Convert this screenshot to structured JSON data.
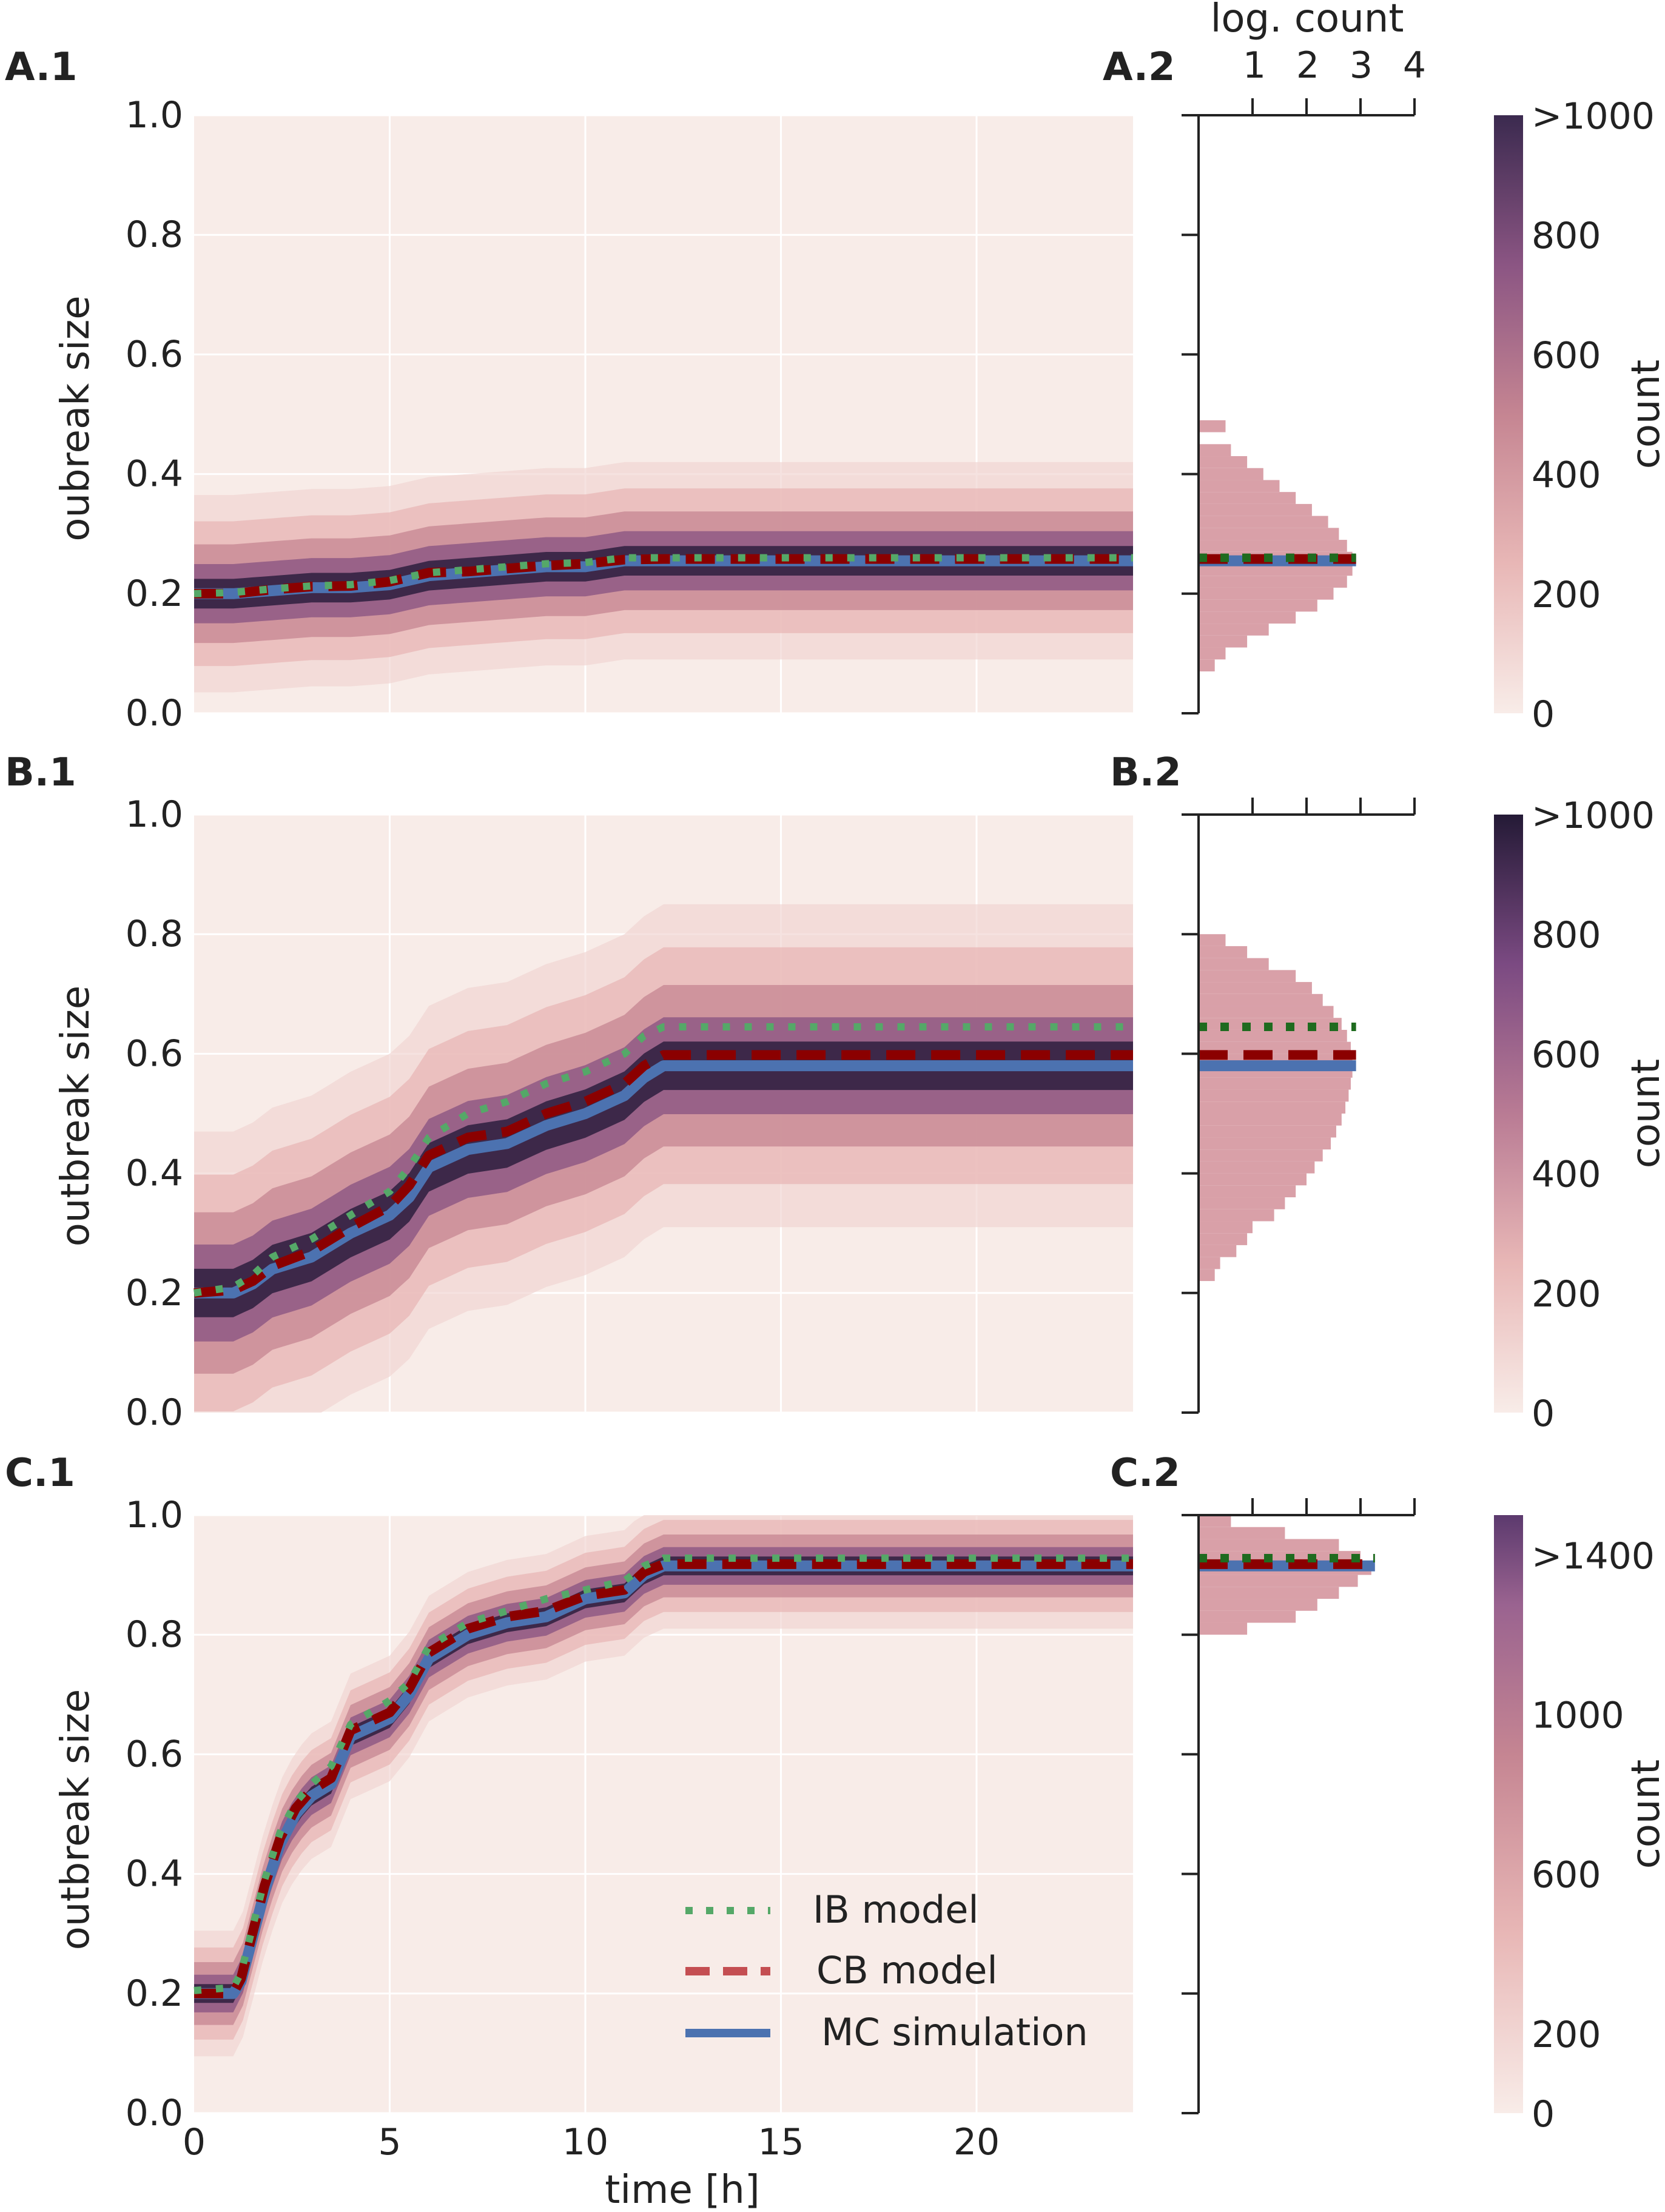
{
  "figure": {
    "panel_labels": [
      "A.1",
      "A.2",
      "B.1",
      "B.2",
      "C.1",
      "C.2"
    ],
    "histogram_axis_title": "log. count",
    "histogram_ticks": [
      "1",
      "2",
      "3",
      "4"
    ]
  },
  "colors": {
    "background": "#f8ece8",
    "ib_model": "#55a868",
    "ib_model_hist": "#1f6b1f",
    "cb_model": "#c44e52",
    "cb_model_line": "#8b0000",
    "mc_simulation": "#4c72b0",
    "histogram_fill": "#d9a0a8",
    "density_dark": "#2d1e3e"
  },
  "legend": {
    "ib_label": "IB model",
    "cb_label": "CB model",
    "mc_label": "MC simulation"
  },
  "chart_data": [
    {
      "id": "A.1",
      "type": "heatmap",
      "xlabel": "time [h]",
      "ylabel": "oubreak size",
      "xlim": [
        0,
        24
      ],
      "ylim": [
        0,
        1
      ],
      "x_ticks": [
        "0",
        "5",
        "10",
        "15",
        "20"
      ],
      "y_ticks": [
        "0.0",
        "0.2",
        "0.4",
        "0.6",
        "0.8",
        "1.0"
      ],
      "spread": 0.055,
      "series": [
        {
          "name": "MC simulation",
          "x": [
            0,
            1,
            2,
            3,
            4,
            5,
            6,
            7,
            8,
            9,
            10,
            11,
            12,
            24
          ],
          "y": [
            0.2,
            0.2,
            0.205,
            0.21,
            0.21,
            0.215,
            0.23,
            0.235,
            0.24,
            0.245,
            0.245,
            0.255,
            0.255,
            0.255
          ]
        },
        {
          "name": "CB model",
          "x": [
            0,
            1,
            2,
            3,
            4,
            5,
            6,
            7,
            8,
            9,
            10,
            11,
            12,
            24
          ],
          "y": [
            0.2,
            0.2,
            0.207,
            0.212,
            0.213,
            0.22,
            0.235,
            0.237,
            0.242,
            0.247,
            0.25,
            0.257,
            0.258,
            0.258
          ]
        },
        {
          "name": "IB model",
          "x": [
            0,
            1,
            2,
            3,
            4,
            5,
            6,
            7,
            8,
            9,
            10,
            11,
            12,
            24
          ],
          "y": [
            0.2,
            0.202,
            0.208,
            0.213,
            0.215,
            0.222,
            0.235,
            0.24,
            0.245,
            0.25,
            0.252,
            0.26,
            0.26,
            0.26
          ]
        }
      ]
    },
    {
      "id": "A.2",
      "type": "bar",
      "orientation": "horizontal",
      "xscale": "log",
      "xlim": [
        0,
        4
      ],
      "ylim": [
        0,
        1
      ],
      "bins_y": [
        0.08,
        0.1,
        0.12,
        0.14,
        0.16,
        0.18,
        0.2,
        0.22,
        0.24,
        0.26,
        0.28,
        0.3,
        0.32,
        0.34,
        0.36,
        0.38,
        0.4,
        0.42,
        0.44,
        0.48
      ],
      "log_counts": [
        0.3,
        0.5,
        0.9,
        1.3,
        1.8,
        2.2,
        2.5,
        2.75,
        2.85,
        2.85,
        2.75,
        2.6,
        2.4,
        2.1,
        1.8,
        1.5,
        1.2,
        0.9,
        0.6,
        0.5
      ],
      "final_values": {
        "IB model": 0.26,
        "CB model": 0.258,
        "MC simulation": 0.255
      },
      "colorbar": {
        "label": "count",
        "ticks": [
          "0",
          "200",
          "400",
          "600",
          "800",
          ">1000"
        ],
        "max_label": ">1000"
      }
    },
    {
      "id": "B.1",
      "type": "heatmap",
      "xlabel": "time [h]",
      "ylabel": "outbreak size",
      "xlim": [
        0,
        24
      ],
      "ylim": [
        0,
        1
      ],
      "x_ticks": [
        "0",
        "5",
        "10",
        "15",
        "20"
      ],
      "y_ticks": [
        "0.0",
        "0.2",
        "0.4",
        "0.6",
        "0.8",
        "1.0"
      ],
      "spread": 0.09,
      "series": [
        {
          "name": "MC simulation",
          "x": [
            0,
            1,
            1.5,
            2,
            3,
            4,
            5,
            5.5,
            6,
            7,
            8,
            9,
            10,
            11,
            11.5,
            12,
            24
          ],
          "y": [
            0.2,
            0.2,
            0.215,
            0.24,
            0.26,
            0.3,
            0.33,
            0.36,
            0.41,
            0.44,
            0.45,
            0.48,
            0.5,
            0.53,
            0.56,
            0.58,
            0.58
          ]
        },
        {
          "name": "CB model",
          "x": [
            0,
            1,
            1.5,
            2,
            3,
            4,
            5,
            5.5,
            6,
            7,
            8,
            9,
            10,
            11,
            11.5,
            12,
            24
          ],
          "y": [
            0.2,
            0.205,
            0.22,
            0.245,
            0.27,
            0.31,
            0.345,
            0.38,
            0.43,
            0.46,
            0.47,
            0.5,
            0.52,
            0.55,
            0.58,
            0.598,
            0.598
          ]
        },
        {
          "name": "IB model",
          "x": [
            0,
            1,
            1.5,
            2,
            3,
            4,
            5,
            5.5,
            6,
            7,
            8,
            9,
            10,
            11,
            11.5,
            12,
            24
          ],
          "y": [
            0.2,
            0.21,
            0.23,
            0.26,
            0.29,
            0.33,
            0.37,
            0.41,
            0.46,
            0.5,
            0.52,
            0.55,
            0.57,
            0.6,
            0.63,
            0.645,
            0.645
          ]
        }
      ]
    },
    {
      "id": "B.2",
      "type": "bar",
      "orientation": "horizontal",
      "xscale": "log",
      "xlim": [
        0,
        4
      ],
      "ylim": [
        0,
        1
      ],
      "bins_y": [
        0.23,
        0.25,
        0.27,
        0.29,
        0.31,
        0.33,
        0.35,
        0.37,
        0.39,
        0.41,
        0.43,
        0.45,
        0.47,
        0.49,
        0.51,
        0.53,
        0.55,
        0.57,
        0.59,
        0.61,
        0.63,
        0.65,
        0.67,
        0.69,
        0.71,
        0.73,
        0.75,
        0.77,
        0.79
      ],
      "log_counts": [
        0.3,
        0.4,
        0.7,
        0.9,
        1.0,
        1.4,
        1.6,
        1.8,
        2.0,
        2.15,
        2.3,
        2.45,
        2.55,
        2.65,
        2.72,
        2.78,
        2.82,
        2.85,
        2.85,
        2.82,
        2.75,
        2.65,
        2.5,
        2.3,
        2.1,
        1.8,
        1.3,
        0.9,
        0.5
      ],
      "final_values": {
        "IB model": 0.645,
        "CB model": 0.598,
        "MC simulation": 0.58
      },
      "colorbar": {
        "label": "count",
        "ticks": [
          "0",
          "200",
          "400",
          "600",
          "800",
          ">1000"
        ],
        "max_label": ">1000"
      }
    },
    {
      "id": "C.1",
      "type": "heatmap",
      "xlabel": "time [h]",
      "ylabel": "outbreak size",
      "xlim": [
        0,
        24
      ],
      "ylim": [
        0,
        1
      ],
      "x_ticks": [
        "0",
        "5",
        "10",
        "15",
        "20"
      ],
      "y_ticks": [
        "0.0",
        "0.2",
        "0.4",
        "0.6",
        "0.8",
        "1.0"
      ],
      "spread": 0.035,
      "series": [
        {
          "name": "MC simulation",
          "x": [
            0,
            1,
            1.2,
            1.8,
            2.2,
            2.6,
            3,
            3.5,
            4,
            5,
            5.5,
            6,
            6.5,
            7,
            8,
            9,
            10,
            11,
            11.5,
            12,
            24
          ],
          "y": [
            0.2,
            0.2,
            0.22,
            0.37,
            0.45,
            0.5,
            0.53,
            0.55,
            0.63,
            0.66,
            0.7,
            0.76,
            0.78,
            0.8,
            0.82,
            0.83,
            0.86,
            0.87,
            0.9,
            0.915,
            0.915
          ]
        },
        {
          "name": "CB model",
          "x": [
            0,
            1,
            1.2,
            1.8,
            2.2,
            2.6,
            3,
            3.5,
            4,
            5,
            5.5,
            6,
            6.5,
            7,
            8,
            9,
            10,
            11,
            11.5,
            12,
            24
          ],
          "y": [
            0.2,
            0.2,
            0.225,
            0.38,
            0.46,
            0.51,
            0.54,
            0.56,
            0.64,
            0.67,
            0.71,
            0.77,
            0.79,
            0.81,
            0.83,
            0.84,
            0.865,
            0.875,
            0.905,
            0.918,
            0.918
          ]
        },
        {
          "name": "IB model",
          "x": [
            0,
            1,
            1.2,
            1.8,
            2.2,
            2.6,
            3,
            3.5,
            4,
            5,
            5.5,
            6,
            6.5,
            7,
            8,
            9,
            10,
            11,
            11.5,
            12,
            24
          ],
          "y": [
            0.205,
            0.21,
            0.235,
            0.39,
            0.47,
            0.52,
            0.55,
            0.58,
            0.65,
            0.69,
            0.72,
            0.78,
            0.8,
            0.82,
            0.84,
            0.86,
            0.875,
            0.89,
            0.915,
            0.928,
            0.928
          ]
        }
      ]
    },
    {
      "id": "C.2",
      "type": "bar",
      "orientation": "horizontal",
      "xscale": "log",
      "xlim": [
        0,
        4
      ],
      "ylim": [
        0,
        1
      ],
      "bins_y": [
        0.81,
        0.83,
        0.85,
        0.87,
        0.89,
        0.91,
        0.93,
        0.95,
        0.97,
        0.99
      ],
      "log_counts": [
        0.9,
        1.8,
        2.2,
        2.6,
        2.95,
        3.2,
        3.0,
        2.6,
        1.6,
        0.6
      ],
      "final_values": {
        "IB model": 0.928,
        "CB model": 0.918,
        "MC simulation": 0.915
      },
      "colorbar": {
        "label": "count",
        "ticks": [
          "0",
          "200",
          "600",
          "1000",
          ">1400"
        ],
        "max_label": ">1400"
      }
    }
  ]
}
